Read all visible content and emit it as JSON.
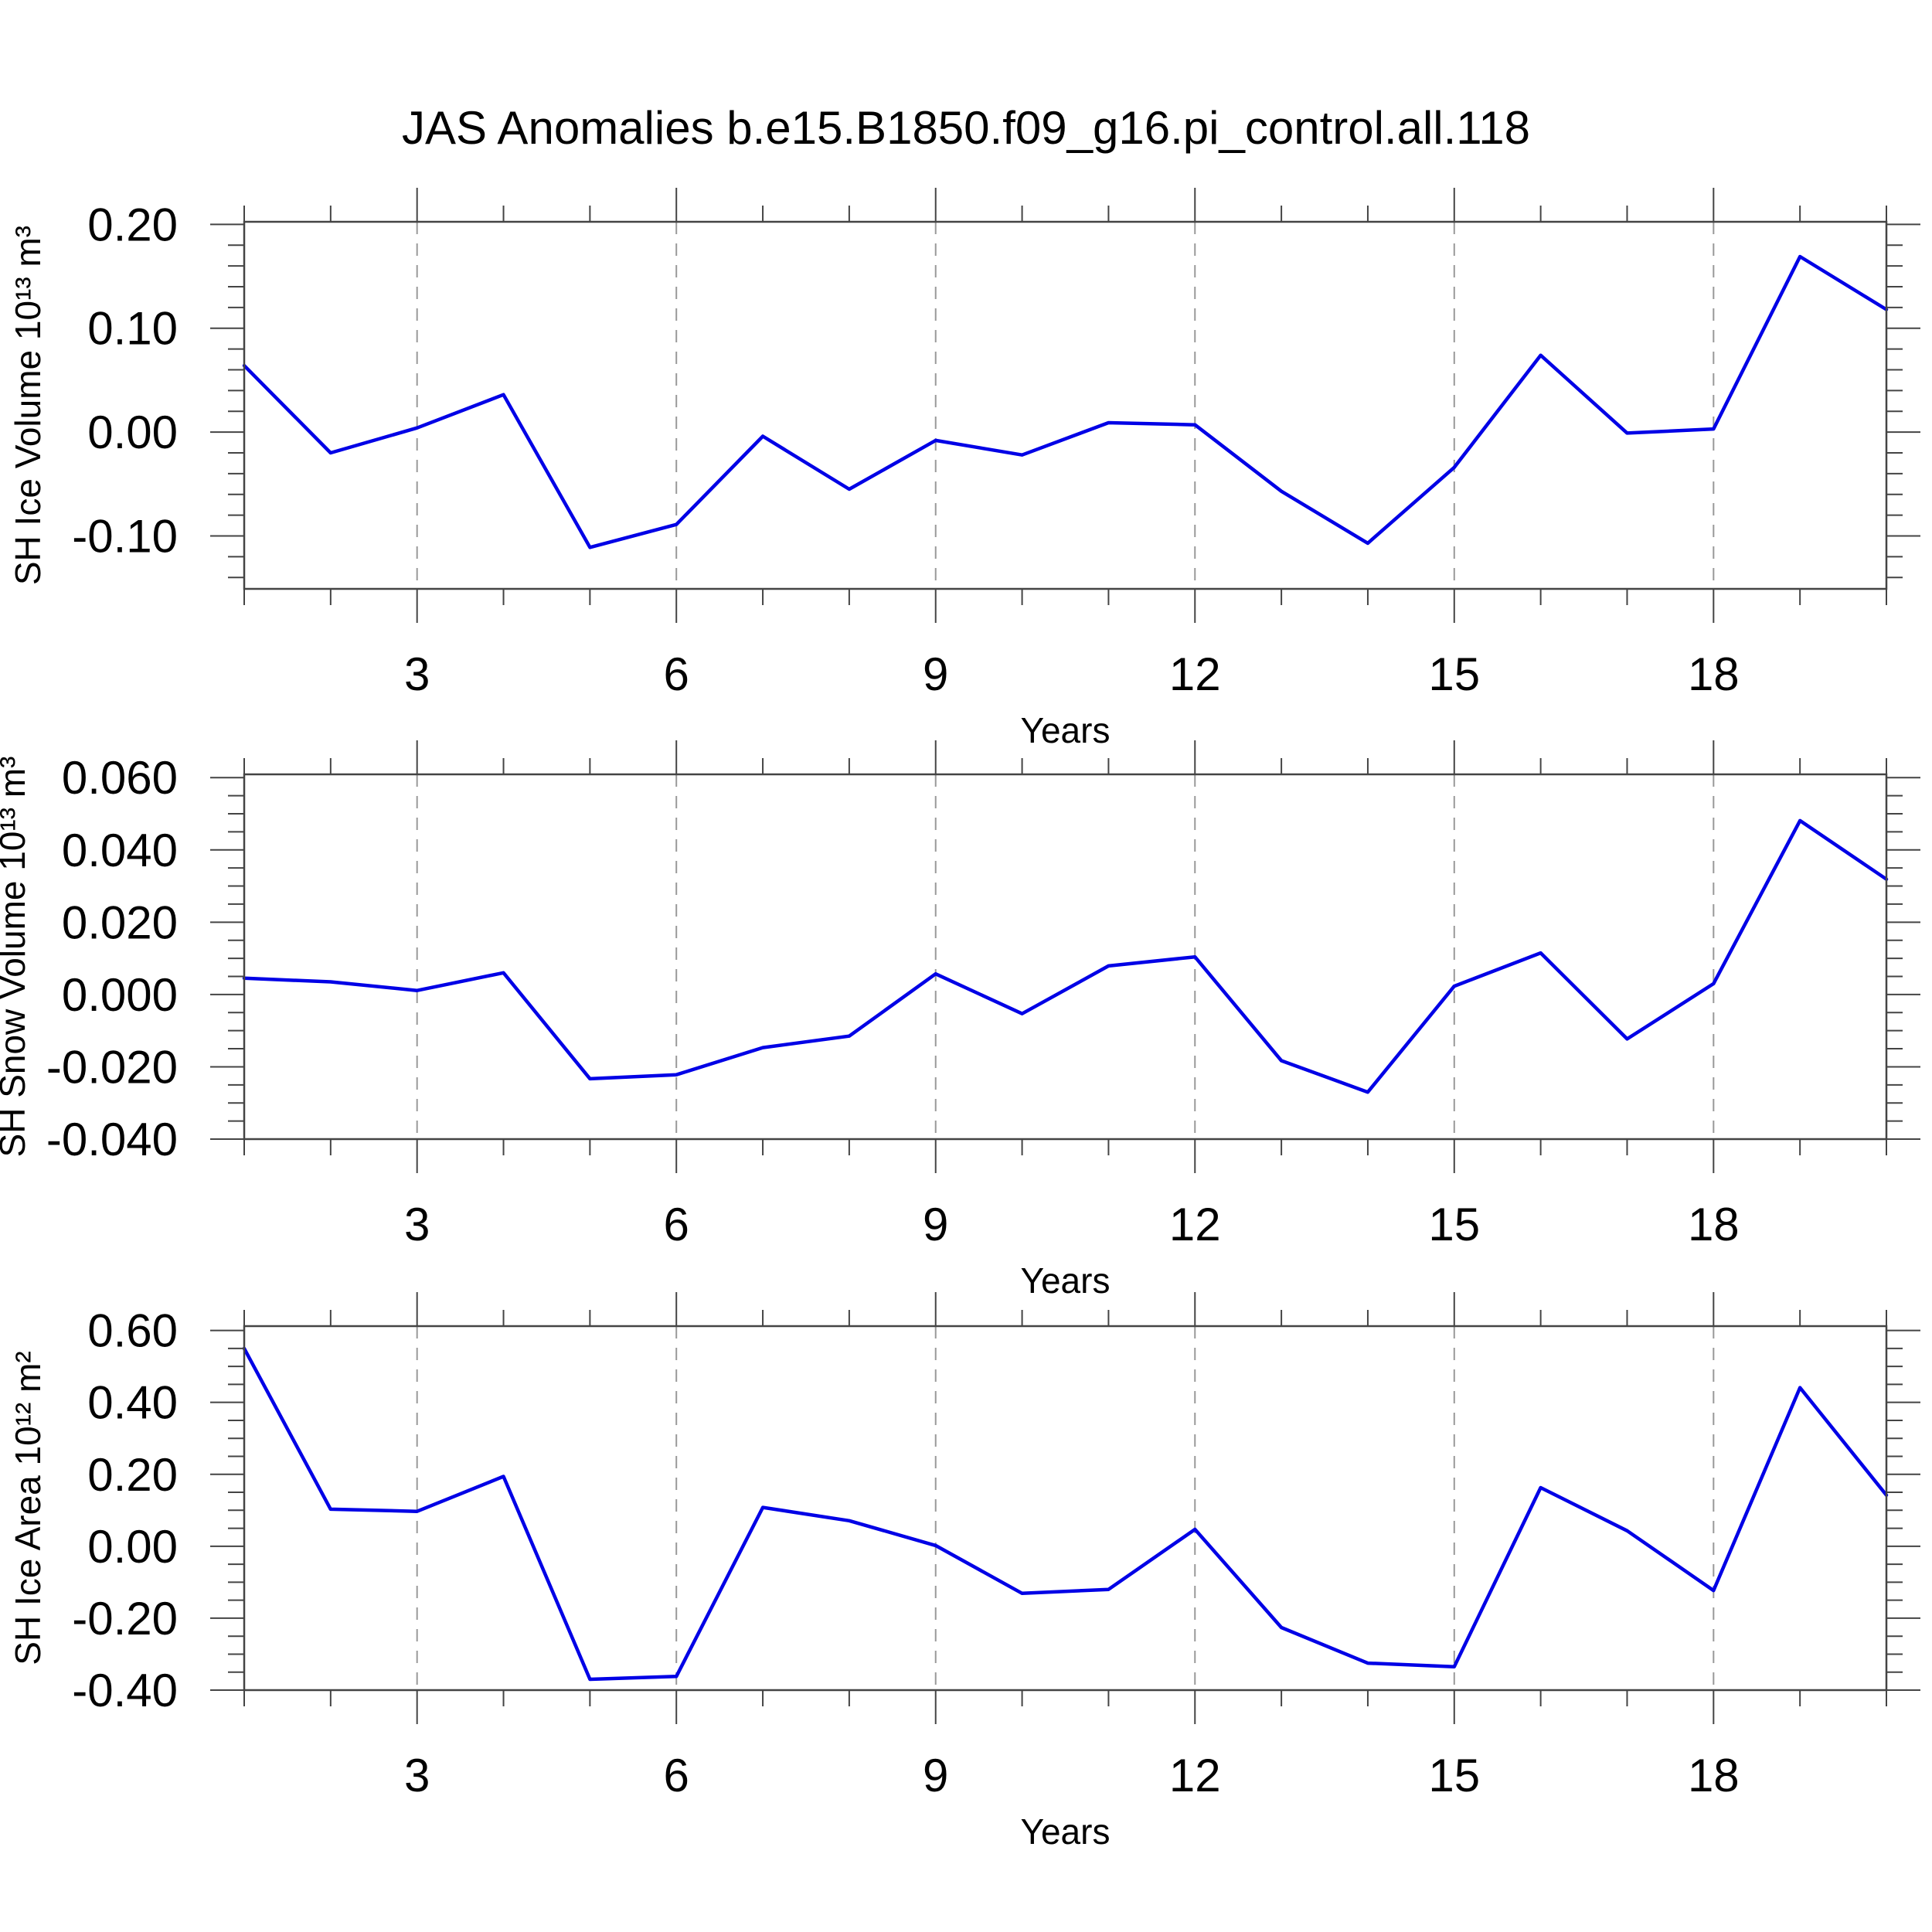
{
  "title": "JAS Anomalies b.e15.B1850.f09_g16.pi_control.all.118",
  "colors": {
    "line": "#0000e6",
    "frame": "#444444",
    "tick": "#444444",
    "grid": "#999999",
    "text": "#000000",
    "background": "#ffffff"
  },
  "chart_data": [
    {
      "type": "line",
      "series_name": "SH Ice Volume anomaly",
      "ylabel": "SH Ice Volume 10¹³ m³",
      "xlabel": "Years",
      "x": [
        1,
        2,
        3,
        4,
        5,
        6,
        7,
        8,
        9,
        10,
        11,
        12,
        13,
        14,
        15,
        16,
        17,
        18,
        19,
        20
      ],
      "values": [
        0.064,
        -0.02,
        0.004,
        0.036,
        -0.111,
        -0.089,
        -0.004,
        -0.055,
        -0.008,
        -0.022,
        0.009,
        0.007,
        -0.057,
        -0.107,
        -0.034,
        0.074,
        -0.001,
        0.003,
        0.169,
        0.118
      ],
      "xlim": [
        1,
        20
      ],
      "ylim": [
        -0.151,
        0.2025
      ],
      "xticks": [
        3,
        6,
        9,
        12,
        15,
        18
      ],
      "xtick_labels": [
        "3",
        "6",
        "9",
        "12",
        "15",
        "18"
      ],
      "x_minor_step": 1,
      "ytick_values": [
        0.2,
        0.1,
        0.0,
        -0.1
      ],
      "ytick_labels": [
        "0.20",
        "0.10",
        "0.00",
        "-0.10"
      ],
      "y_minor_step": 0.02,
      "grid": "vertical-dashed-at-major-xticks",
      "legend": "none"
    },
    {
      "type": "line",
      "series_name": "SH Snow Volume anomaly",
      "ylabel": "SH Snow Volume 10¹³ m³",
      "xlabel": "Years",
      "x": [
        1,
        2,
        3,
        4,
        5,
        6,
        7,
        8,
        9,
        10,
        11,
        12,
        13,
        14,
        15,
        16,
        17,
        18,
        19,
        20
      ],
      "values": [
        0.0045,
        0.0035,
        0.0011,
        0.006,
        -0.0233,
        -0.0222,
        -0.0147,
        -0.0115,
        0.0057,
        -0.0053,
        0.0079,
        0.0104,
        -0.0183,
        -0.027,
        0.0023,
        0.0115,
        -0.0123,
        0.003,
        0.0481,
        0.0319
      ],
      "xlim": [
        1,
        20
      ],
      "ylim": [
        -0.04,
        0.0609
      ],
      "xticks": [
        3,
        6,
        9,
        12,
        15,
        18
      ],
      "xtick_labels": [
        "3",
        "6",
        "9",
        "12",
        "15",
        "18"
      ],
      "x_minor_step": 1,
      "ytick_values": [
        0.06,
        0.04,
        0.02,
        0.0,
        -0.02,
        -0.04
      ],
      "ytick_labels": [
        "0.060",
        "0.040",
        "0.020",
        "0.000",
        "-0.020",
        "-0.040"
      ],
      "y_minor_step": 0.005,
      "grid": "vertical-dashed-at-major-xticks",
      "legend": "none"
    },
    {
      "type": "line",
      "series_name": "SH Ice Area anomaly",
      "ylabel": "SH Ice Area 10¹² m²",
      "xlabel": "Years",
      "x": [
        1,
        2,
        3,
        4,
        5,
        6,
        7,
        8,
        9,
        10,
        11,
        12,
        13,
        14,
        15,
        16,
        17,
        18,
        19,
        20
      ],
      "values": [
        0.55,
        0.103,
        0.097,
        0.194,
        -0.37,
        -0.362,
        0.108,
        0.071,
        0.002,
        -0.131,
        -0.12,
        0.047,
        -0.226,
        -0.325,
        -0.335,
        0.163,
        0.043,
        -0.123,
        0.441,
        0.142
      ],
      "xlim": [
        1,
        20
      ],
      "ylim": [
        -0.4,
        0.612
      ],
      "xticks": [
        3,
        6,
        9,
        12,
        15,
        18
      ],
      "xtick_labels": [
        "3",
        "6",
        "9",
        "12",
        "15",
        "18"
      ],
      "x_minor_step": 1,
      "ytick_values": [
        0.6,
        0.4,
        0.2,
        0.0,
        -0.2,
        -0.4
      ],
      "ytick_labels": [
        "0.60",
        "0.40",
        "0.20",
        "0.00",
        "-0.20",
        "-0.40"
      ],
      "y_minor_step": 0.05,
      "grid": "vertical-dashed-at-major-xticks",
      "legend": "none"
    }
  ]
}
